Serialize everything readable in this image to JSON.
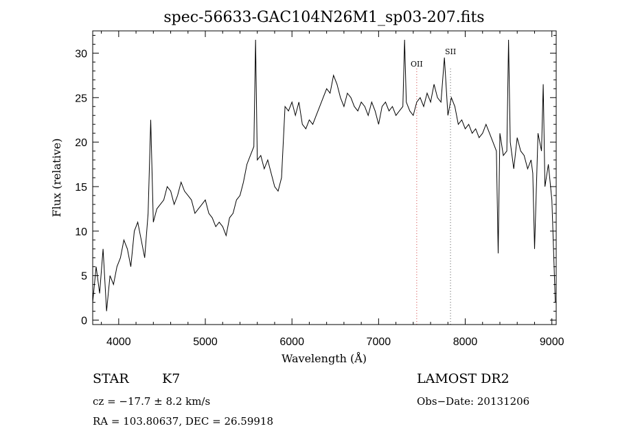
{
  "chart_data": {
    "type": "line",
    "title": "spec-56633-GAC104N26M1_sp03-207.fits",
    "xlabel": "Wavelength (Å)",
    "ylabel": "Flux (relative)",
    "xlim": [
      3700,
      9050
    ],
    "ylim": [
      -0.5,
      32.5
    ],
    "xticks": [
      "4000",
      "5000",
      "6000",
      "7000",
      "8000",
      "9000"
    ],
    "yticks": [
      "0",
      "5",
      "10",
      "15",
      "20",
      "25",
      "30"
    ],
    "grid": false,
    "lines": [
      {
        "label": "OII",
        "x": 7440,
        "color": "#d04040"
      },
      {
        "label": "SII",
        "x": 7830,
        "color": "#555555"
      }
    ],
    "x": [
      3700,
      3740,
      3780,
      3820,
      3860,
      3900,
      3940,
      3980,
      4020,
      4060,
      4100,
      4140,
      4180,
      4220,
      4260,
      4300,
      4340,
      4370,
      4400,
      4440,
      4480,
      4520,
      4560,
      4600,
      4640,
      4680,
      4720,
      4760,
      4800,
      4840,
      4880,
      4920,
      4960,
      5000,
      5040,
      5080,
      5120,
      5160,
      5200,
      5240,
      5280,
      5320,
      5360,
      5400,
      5440,
      5480,
      5520,
      5560,
      5580,
      5600,
      5640,
      5680,
      5720,
      5760,
      5800,
      5840,
      5880,
      5920,
      5960,
      6000,
      6040,
      6080,
      6120,
      6160,
      6200,
      6240,
      6280,
      6320,
      6360,
      6400,
      6440,
      6480,
      6520,
      6560,
      6600,
      6640,
      6680,
      6720,
      6760,
      6800,
      6840,
      6880,
      6920,
      6960,
      7000,
      7040,
      7080,
      7120,
      7160,
      7200,
      7240,
      7280,
      7300,
      7320,
      7360,
      7400,
      7440,
      7480,
      7520,
      7560,
      7600,
      7640,
      7680,
      7720,
      7760,
      7800,
      7840,
      7880,
      7920,
      7960,
      8000,
      8040,
      8080,
      8120,
      8160,
      8200,
      8240,
      8280,
      8320,
      8360,
      8380,
      8400,
      8440,
      8480,
      8500,
      8520,
      8560,
      8600,
      8640,
      8680,
      8720,
      8760,
      8780,
      8800,
      8840,
      8880,
      8900,
      8920,
      8960,
      9000,
      9040
    ],
    "y": [
      2.0,
      6.0,
      3.0,
      8.0,
      1.0,
      5.0,
      4.0,
      6.0,
      7.0,
      9.0,
      8.0,
      6.0,
      10.0,
      11.0,
      9.0,
      7.0,
      12.0,
      22.5,
      11.0,
      12.5,
      13.0,
      13.5,
      15.0,
      14.5,
      13.0,
      14.0,
      15.5,
      14.5,
      14.0,
      13.5,
      12.0,
      12.5,
      13.0,
      13.5,
      12.0,
      11.5,
      10.5,
      11.0,
      10.5,
      9.5,
      11.5,
      12.0,
      13.5,
      14.0,
      15.5,
      17.5,
      18.5,
      19.5,
      31.5,
      18.0,
      18.5,
      17.0,
      18.0,
      16.5,
      15.0,
      14.5,
      16.0,
      24.0,
      23.5,
      24.5,
      23.0,
      24.5,
      22.0,
      21.5,
      22.5,
      22.0,
      23.0,
      24.0,
      25.0,
      26.0,
      25.5,
      27.5,
      26.5,
      25.0,
      24.0,
      25.5,
      25.0,
      24.0,
      23.5,
      24.5,
      24.0,
      23.0,
      24.5,
      23.5,
      22.0,
      24.0,
      24.5,
      23.5,
      24.0,
      23.0,
      23.5,
      24.0,
      31.5,
      24.5,
      23.5,
      23.0,
      24.5,
      25.0,
      24.0,
      25.5,
      24.5,
      26.5,
      25.0,
      24.5,
      29.5,
      23.0,
      25.0,
      24.0,
      22.0,
      22.5,
      21.5,
      22.0,
      21.0,
      21.5,
      20.5,
      21.0,
      22.0,
      21.0,
      20.0,
      19.0,
      7.5,
      21.0,
      18.5,
      19.0,
      31.5,
      20.0,
      17.0,
      20.5,
      19.0,
      18.5,
      17.0,
      18.0,
      16.5,
      8.0,
      21.0,
      19.0,
      26.5,
      15.0,
      17.5,
      13.5,
      2.0
    ]
  },
  "footer": {
    "object_class": "STAR",
    "subclass": "K7",
    "survey": "LAMOST DR2",
    "cz": "cz = −17.7 ± 8.2 km/s",
    "obs_date": "Obs−Date: 20131206",
    "coords": "RA = 103.80637, DEC =  26.59918"
  }
}
